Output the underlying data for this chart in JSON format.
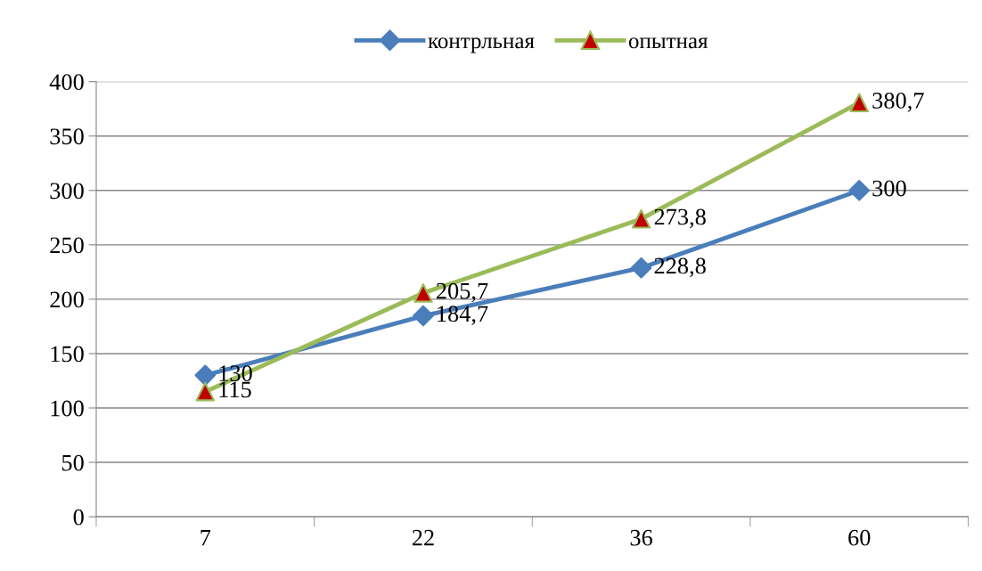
{
  "chart_data": {
    "type": "line",
    "categories": [
      "7",
      "22",
      "36",
      "60"
    ],
    "series": [
      {
        "name": "контрльная",
        "color": "#4a7ebb",
        "marker": "diamond",
        "values": [
          130,
          184.7,
          228.8,
          300
        ],
        "value_labels": [
          "130",
          "184,7",
          "228,8",
          "300"
        ]
      },
      {
        "name": "опытная",
        "color": "#9bbb59",
        "marker": "triangle",
        "colors": [
          "#c00000",
          "#c00000",
          "#c00000",
          "#c00000"
        ],
        "values": [
          115,
          205.7,
          273.8,
          380.7
        ],
        "value_labels": [
          "115",
          "205,7",
          "273,8",
          "380,7"
        ]
      }
    ],
    "ylim": [
      0,
      400
    ],
    "yticks": [
      0,
      50,
      100,
      150,
      200,
      250,
      300,
      350,
      400
    ],
    "grid": "y",
    "legend": "top",
    "line_style": "solid"
  }
}
